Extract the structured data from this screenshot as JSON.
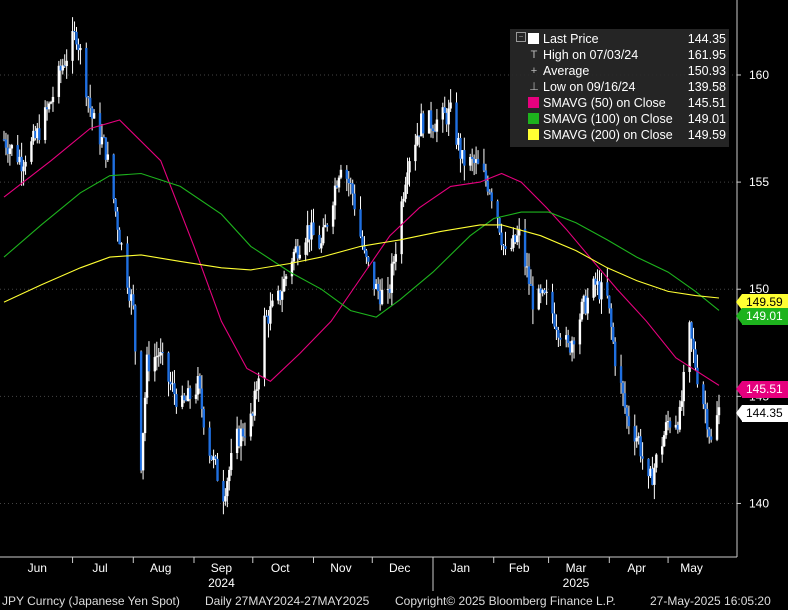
{
  "chart_data": {
    "type": "candlestick",
    "y_ticks": [
      "160",
      "155",
      "150",
      "145",
      "140"
    ],
    "ylim": [
      137.5,
      163.5
    ],
    "x_tick_labels": [
      "Jun",
      "Jul",
      "Aug",
      "Sep",
      "Oct",
      "Nov",
      "Dec",
      "Jan",
      "Feb",
      "Mar",
      "Apr",
      "May"
    ],
    "x_year_labels": [
      "2024",
      "2025"
    ],
    "price_path": [
      [
        "2024-05-27",
        157
      ],
      [
        "2024-06-05",
        156
      ],
      [
        "2024-06-12",
        157
      ],
      [
        "2024-06-19",
        158.5
      ],
      [
        "2024-06-26",
        160.5
      ],
      [
        "2024-07-03",
        161.95
      ],
      [
        "2024-07-05",
        161
      ],
      [
        "2024-07-11",
        158
      ],
      [
        "2024-07-18",
        156.5
      ],
      [
        "2024-07-25",
        152.5
      ],
      [
        "2024-08-01",
        149
      ],
      [
        "2024-08-05",
        142
      ],
      [
        "2024-08-08",
        146.5
      ],
      [
        "2024-08-14",
        147
      ],
      [
        "2024-08-20",
        145.5
      ],
      [
        "2024-08-26",
        144.5
      ],
      [
        "2024-09-03",
        145.5
      ],
      [
        "2024-09-09",
        142.5
      ],
      [
        "2024-09-16",
        140.5
      ],
      [
        "2024-09-23",
        143
      ],
      [
        "2024-10-01",
        144
      ],
      [
        "2024-10-07",
        148.5
      ],
      [
        "2024-10-14",
        149.5
      ],
      [
        "2024-10-21",
        151.5
      ],
      [
        "2024-10-29",
        152.8
      ],
      [
        "2024-11-05",
        152
      ],
      [
        "2024-11-12",
        154.8
      ],
      [
        "2024-11-15",
        156
      ],
      [
        "2024-11-21",
        154.5
      ],
      [
        "2024-11-27",
        151.5
      ],
      [
        "2024-12-03",
        150
      ],
      [
        "2024-12-09",
        149.5
      ],
      [
        "2024-12-13",
        152
      ],
      [
        "2024-12-19",
        156
      ],
      [
        "2024-12-26",
        157.8
      ],
      [
        "2025-01-02",
        157.8
      ],
      [
        "2025-01-10",
        158.2
      ],
      [
        "2025-01-16",
        156
      ],
      [
        "2025-01-23",
        155.8
      ],
      [
        "2025-01-30",
        154.8
      ],
      [
        "2025-02-03",
        153.5
      ],
      [
        "2025-02-07",
        151.5
      ],
      [
        "2025-02-14",
        152.5
      ],
      [
        "2025-02-21",
        149.5
      ],
      [
        "2025-02-28",
        149.5
      ],
      [
        "2025-03-05",
        148.5
      ],
      [
        "2025-03-11",
        147.2
      ],
      [
        "2025-03-18",
        149
      ],
      [
        "2025-03-25",
        150.2
      ],
      [
        "2025-03-31",
        149.5
      ],
      [
        "2025-04-04",
        146.8
      ],
      [
        "2025-04-10",
        144
      ],
      [
        "2025-04-16",
        143
      ],
      [
        "2025-04-21",
        140.8
      ],
      [
        "2025-04-25",
        142
      ],
      [
        "2025-05-01",
        143.8
      ],
      [
        "2025-05-07",
        144
      ],
      [
        "2025-05-12",
        148
      ],
      [
        "2025-05-16",
        146
      ],
      [
        "2025-05-21",
        144
      ],
      [
        "2025-05-23",
        142.8
      ],
      [
        "2025-05-27",
        144.35
      ]
    ],
    "series": [
      {
        "name": "SMAVG (50)  on Close",
        "color": "#e6007e",
        "last": 145.51,
        "path": [
          [
            "2024-05-27",
            154.3
          ],
          [
            "2024-06-20",
            156.0
          ],
          [
            "2024-07-10",
            157.5
          ],
          [
            "2024-07-25",
            157.9
          ],
          [
            "2024-08-15",
            156.0
          ],
          [
            "2024-09-01",
            152.0
          ],
          [
            "2024-09-15",
            148.5
          ],
          [
            "2024-09-28",
            146.3
          ],
          [
            "2024-10-10",
            145.7
          ],
          [
            "2024-10-25",
            147.0
          ],
          [
            "2024-11-10",
            148.5
          ],
          [
            "2024-11-25",
            150.5
          ],
          [
            "2024-12-10",
            152.5
          ],
          [
            "2024-12-25",
            153.8
          ],
          [
            "2025-01-10",
            154.8
          ],
          [
            "2025-01-25",
            155.0
          ],
          [
            "2025-02-05",
            155.4
          ],
          [
            "2025-02-15",
            155.0
          ],
          [
            "2025-02-28",
            153.8
          ],
          [
            "2025-03-10",
            152.8
          ],
          [
            "2025-03-22",
            151.5
          ],
          [
            "2025-04-05",
            150.0
          ],
          [
            "2025-04-20",
            148.5
          ],
          [
            "2025-05-05",
            146.8
          ],
          [
            "2025-05-27",
            145.51
          ]
        ]
      },
      {
        "name": "SMAVG (100)  on Close",
        "color": "#1db31d",
        "last": 149.01,
        "path": [
          [
            "2024-05-27",
            151.5
          ],
          [
            "2024-06-15",
            153.0
          ],
          [
            "2024-07-05",
            154.5
          ],
          [
            "2024-07-20",
            155.3
          ],
          [
            "2024-08-05",
            155.4
          ],
          [
            "2024-08-25",
            154.8
          ],
          [
            "2024-09-15",
            153.5
          ],
          [
            "2024-09-30",
            152.0
          ],
          [
            "2024-10-20",
            150.8
          ],
          [
            "2024-11-05",
            150.0
          ],
          [
            "2024-11-20",
            149.0
          ],
          [
            "2024-12-03",
            148.7
          ],
          [
            "2024-12-15",
            149.5
          ],
          [
            "2025-01-01",
            150.8
          ],
          [
            "2025-01-20",
            152.5
          ],
          [
            "2025-02-01",
            153.3
          ],
          [
            "2025-02-15",
            153.6
          ],
          [
            "2025-03-01",
            153.6
          ],
          [
            "2025-03-15",
            153.1
          ],
          [
            "2025-03-31",
            152.3
          ],
          [
            "2025-04-15",
            151.5
          ],
          [
            "2025-05-01",
            150.8
          ],
          [
            "2025-05-15",
            149.9
          ],
          [
            "2025-05-27",
            149.01
          ]
        ]
      },
      {
        "name": "SMAVG (200)  on Close",
        "color": "#ffff33",
        "last": 149.59,
        "path": [
          [
            "2024-05-27",
            149.4
          ],
          [
            "2024-06-15",
            150.2
          ],
          [
            "2024-07-05",
            151.0
          ],
          [
            "2024-07-20",
            151.5
          ],
          [
            "2024-08-05",
            151.6
          ],
          [
            "2024-08-25",
            151.3
          ],
          [
            "2024-09-15",
            151.0
          ],
          [
            "2024-09-30",
            150.9
          ],
          [
            "2024-10-20",
            151.2
          ],
          [
            "2024-11-05",
            151.5
          ],
          [
            "2024-11-25",
            152.0
          ],
          [
            "2024-12-15",
            152.3
          ],
          [
            "2025-01-05",
            152.7
          ],
          [
            "2025-01-25",
            153.0
          ],
          [
            "2025-02-05",
            153.0
          ],
          [
            "2025-02-25",
            152.5
          ],
          [
            "2025-03-15",
            151.8
          ],
          [
            "2025-03-31",
            151.0
          ],
          [
            "2025-04-15",
            150.4
          ],
          [
            "2025-05-01",
            149.9
          ],
          [
            "2025-05-15",
            149.7
          ],
          [
            "2025-05-27",
            149.59
          ]
        ]
      }
    ]
  },
  "legend": {
    "rows": [
      {
        "label": "Last Price",
        "value": "144.35",
        "kind": "swatch",
        "color": "#ffffff"
      },
      {
        "label": "High on 07/03/24",
        "value": "161.95",
        "kind": "symbol",
        "symbol": "T"
      },
      {
        "label": "Average",
        "value": "150.93",
        "kind": "symbol",
        "symbol": "+"
      },
      {
        "label": "Low on 09/16/24",
        "value": "139.58",
        "kind": "symbol",
        "symbol": "⊥"
      },
      {
        "label": "SMAVG (50)  on Close",
        "value": "145.51",
        "kind": "swatch",
        "color": "#e6007e"
      },
      {
        "label": "SMAVG (100)  on Close",
        "value": "149.01",
        "kind": "swatch",
        "color": "#1db31d"
      },
      {
        "label": "SMAVG (200)  on Close",
        "value": "149.59",
        "kind": "swatch",
        "color": "#ffff33"
      }
    ]
  },
  "badges": [
    {
      "value": "149.59",
      "bg": "#ffff33",
      "fg": "#000000"
    },
    {
      "value": "149.01",
      "bg": "#1db31d",
      "fg": "#ffffff"
    },
    {
      "value": "145.51",
      "bg": "#e6007e",
      "fg": "#ffffff"
    },
    {
      "value": "144.35",
      "bg": "#ffffff",
      "fg": "#000000"
    }
  ],
  "footer": {
    "security": "JPY Curncy (Japanese Yen Spot)",
    "range": "Daily 27MAY2024-27MAY2025",
    "copyright": "Copyright© 2025 Bloomberg Finance L.P.",
    "timestamp": "27-May-2025 16:05:20"
  }
}
